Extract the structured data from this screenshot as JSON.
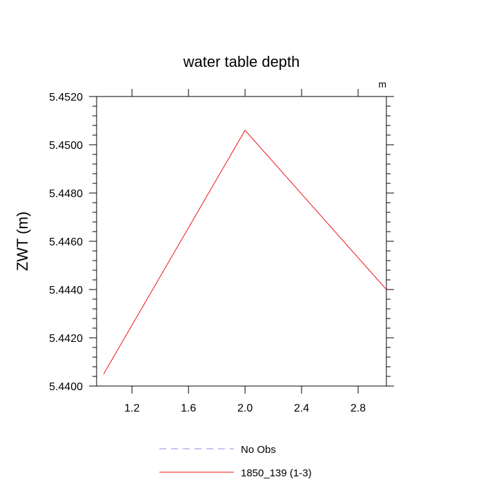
{
  "chart_data": {
    "type": "line",
    "title": "water table depth",
    "units_label": "m",
    "ylabel": "ZWT  (m)",
    "xlabel": "",
    "xlim": [
      0.95,
      3.0
    ],
    "ylim": [
      5.44,
      5.452
    ],
    "x_ticks": [
      1.2,
      1.6,
      2.0,
      2.4,
      2.8
    ],
    "x_tick_labels": [
      "1.2",
      "1.6",
      "2.0",
      "2.4",
      "2.8"
    ],
    "y_ticks": [
      5.44,
      5.442,
      5.444,
      5.446,
      5.448,
      5.45,
      5.452
    ],
    "y_tick_labels": [
      "5.4400",
      "5.4420",
      "5.4440",
      "5.4460",
      "5.4480",
      "5.4500",
      "5.4520"
    ],
    "grid": false,
    "legend_position": "bottom-center",
    "series": [
      {
        "name": "No Obs",
        "color": "#8888ee",
        "dash": "dashed",
        "x": [],
        "y": []
      },
      {
        "name": "1850_139 (1-3)",
        "color": "#ee1111",
        "dash": "solid",
        "x": [
          1.0,
          2.0,
          3.0
        ],
        "y": [
          5.4405,
          5.4506,
          5.444
        ]
      }
    ]
  }
}
